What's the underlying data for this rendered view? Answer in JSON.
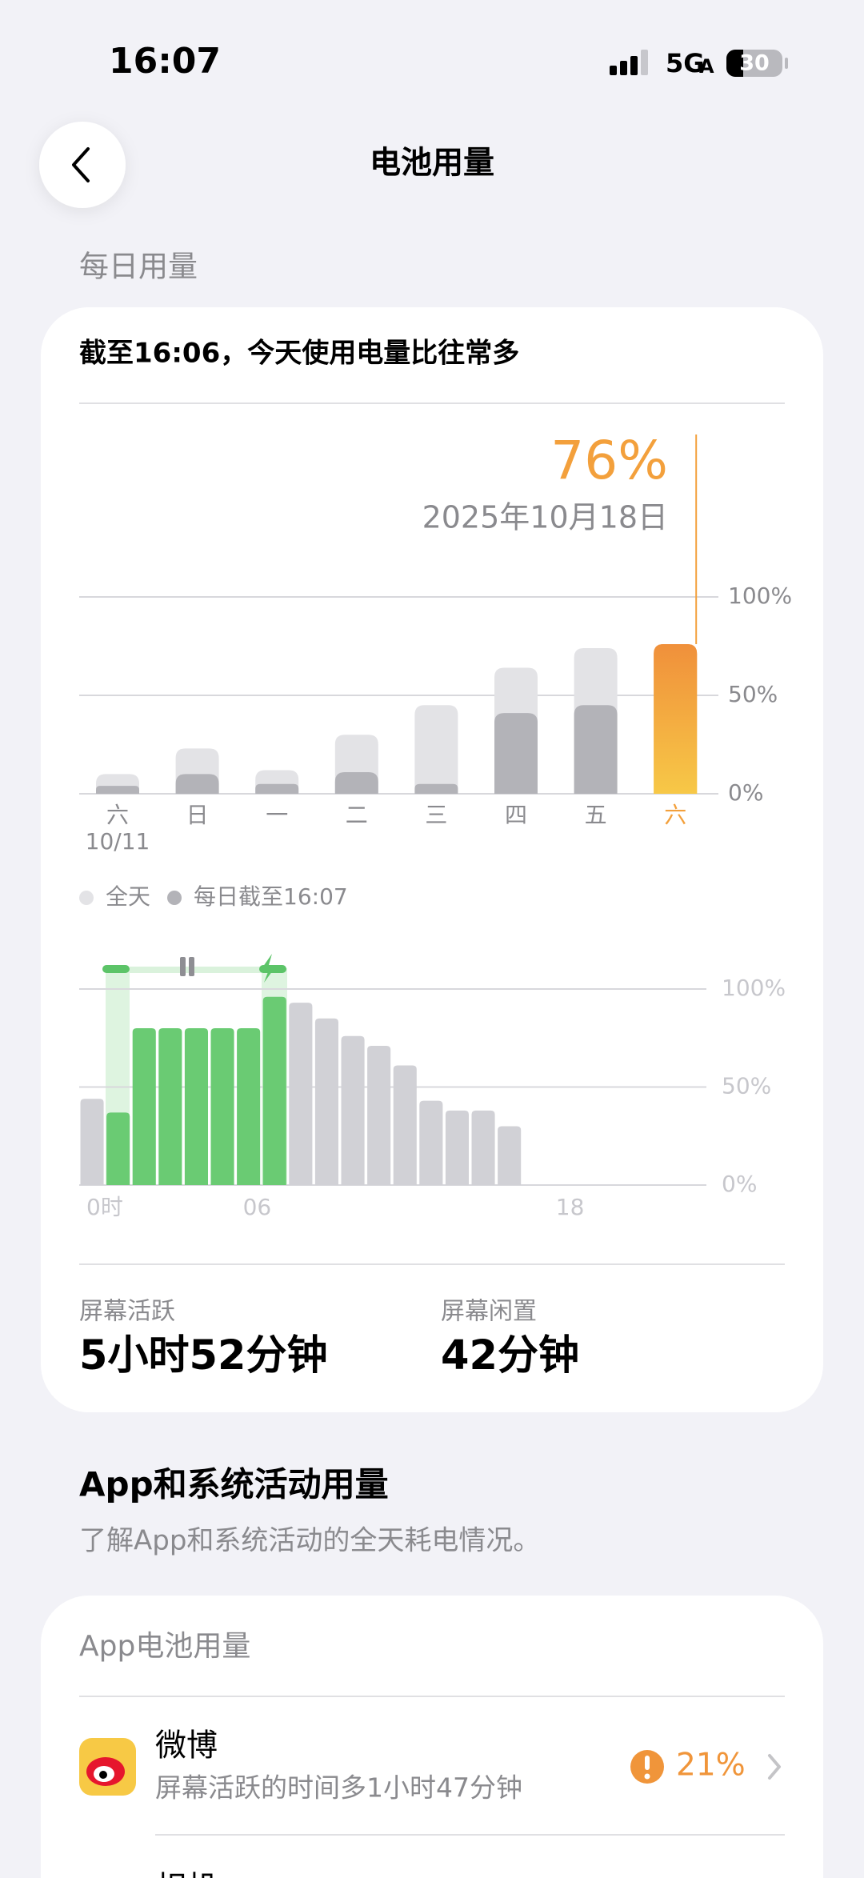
{
  "status": {
    "time": "16:07",
    "network": "5G",
    "network_suffix": "A",
    "battery": "30"
  },
  "header": {
    "title": "电池用量"
  },
  "daily": {
    "section_title": "每日用量",
    "summary": "截至16:06，今天使用电量比往常多",
    "stats": [
      {
        "label": "屏幕活跃",
        "value": "5小时52分钟"
      },
      {
        "label": "屏幕闲置",
        "value": "42分钟"
      }
    ]
  },
  "chart_data": [
    {
      "type": "bar",
      "annotation": "2025年10月18日",
      "highlight_color": "#f3a03c",
      "categories": [
        "六",
        "日",
        "一",
        "二",
        "三",
        "四",
        "五",
        "六"
      ],
      "category_sublabels": [
        "10/11",
        null,
        null,
        null,
        null,
        null,
        null,
        null
      ],
      "series": [
        {
          "name": "全天",
          "color": "#e3e3e6",
          "values": [
            10,
            23,
            12,
            30,
            45,
            64,
            74,
            76
          ],
          "value_labels": [
            null,
            null,
            null,
            null,
            null,
            null,
            null,
            "76%"
          ]
        },
        {
          "name": "每日截至16:07",
          "color": "#b3b3b8",
          "values": [
            4,
            10,
            5,
            11,
            5,
            41,
            45,
            76
          ]
        }
      ],
      "ylim": [
        0,
        100
      ],
      "yticks": [
        {
          "value": 0,
          "label": "0%"
        },
        {
          "value": 50,
          "label": "50%"
        },
        {
          "value": 100,
          "label": "100%"
        }
      ],
      "grid": true
    },
    {
      "type": "bar",
      "x": [
        0,
        1,
        2,
        3,
        4,
        5,
        6,
        7,
        8,
        9,
        10,
        11,
        12,
        13,
        14,
        15,
        16,
        17,
        18,
        19,
        20,
        21,
        22,
        23
      ],
      "values": [
        44,
        37,
        80,
        80,
        80,
        80,
        80,
        96,
        93,
        85,
        76,
        71,
        61,
        43,
        38,
        38,
        30,
        null,
        null,
        null,
        null,
        null,
        null,
        null
      ],
      "colors": [
        "#d1d1d6",
        "#6acb73",
        "#6acb73",
        "#6acb73",
        "#6acb73",
        "#6acb73",
        "#6acb73",
        "#6acb73",
        "#d1d1d6",
        "#d1d1d6",
        "#d1d1d6",
        "#d1d1d6",
        "#d1d1d6",
        "#d1d1d6",
        "#d1d1d6",
        "#d1d1d6",
        "#d1d1d6",
        null,
        null,
        null,
        null,
        null,
        null,
        null
      ],
      "xlim": [
        0,
        24
      ],
      "xticks": [
        {
          "value": 0,
          "label": "0时"
        },
        {
          "value": 6,
          "label": "06"
        },
        {
          "value": 18,
          "label": "18"
        }
      ],
      "ylim": [
        0,
        100
      ],
      "yticks": [
        {
          "value": 0,
          "label": "0%"
        },
        {
          "value": 50,
          "label": "50%"
        },
        {
          "value": 100,
          "label": "100%"
        }
      ],
      "grid": true
    }
  ],
  "apps": {
    "section_title": "App和系统活动用量",
    "section_subtitle": "了解App和系统活动的全天耗电情况。",
    "card_title": "App电池用量",
    "items": [
      {
        "name": "微博",
        "detail": "屏幕活跃的时间多1小时47分钟",
        "usage": "21%"
      },
      {
        "name": "相机"
      }
    ]
  }
}
